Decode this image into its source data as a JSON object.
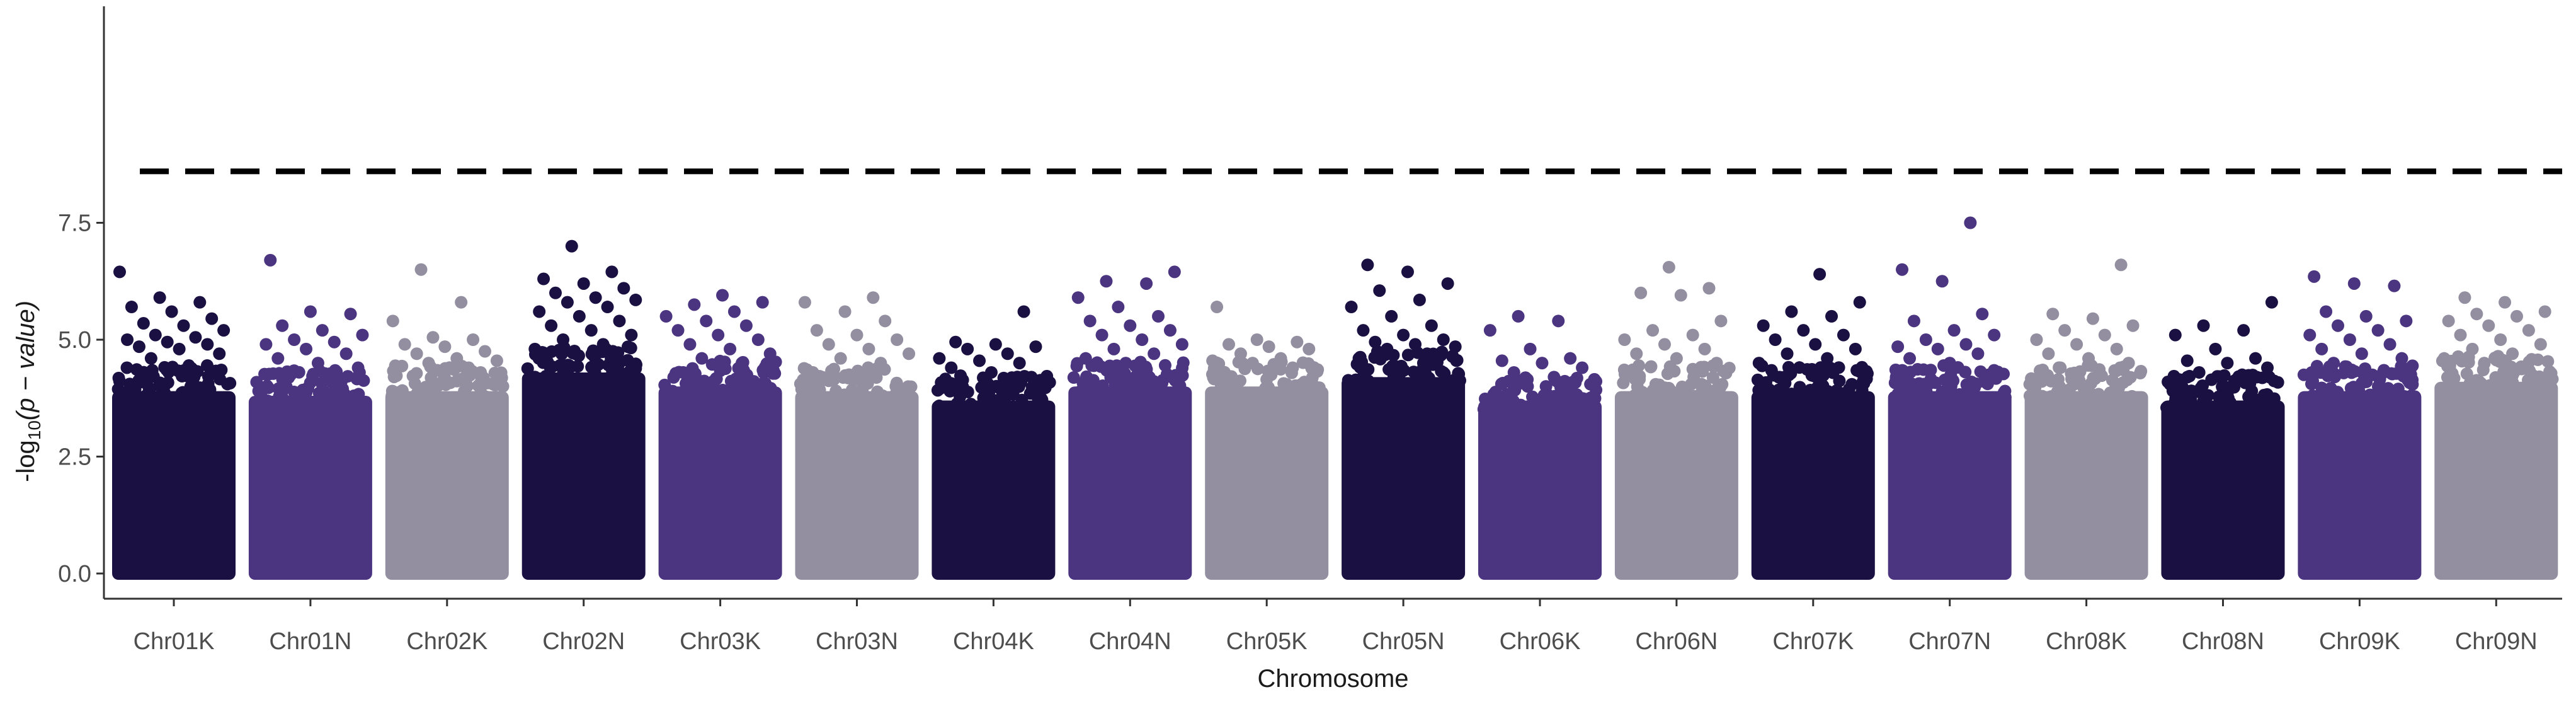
{
  "chart_data": {
    "type": "scatter",
    "subtype": "manhattan",
    "title": "",
    "xlabel": "Chromosome",
    "ylabel": {
      "prefix": "-log",
      "sub": "10",
      "suffix": "(p − value)"
    },
    "ylim": [
      0,
      8.6
    ],
    "yticks": [
      0.0,
      2.5,
      5.0,
      7.5
    ],
    "ytick_labels": [
      "0.0",
      "2.5",
      "5.0",
      "7.5"
    ],
    "threshold": 8.6,
    "threshold_style": "dashed",
    "grid": false,
    "legend": "none",
    "palette": [
      "#1b1042",
      "#4b3480",
      "#938fa0"
    ],
    "categories": [
      "Chr01K",
      "Chr01N",
      "Chr02K",
      "Chr02N",
      "Chr03K",
      "Chr03N",
      "Chr04K",
      "Chr04N",
      "Chr05K",
      "Chr05N",
      "Chr06K",
      "Chr06N",
      "Chr07K",
      "Chr07N",
      "Chr08K",
      "Chr08N",
      "Chr09K",
      "Chr09N"
    ],
    "series": [
      {
        "chromosome": "Chr01K",
        "color": "#1b1042",
        "bulk_top": 3.9,
        "points": [
          6.45,
          5.9,
          5.8,
          5.7,
          5.6,
          5.45,
          5.35,
          5.3,
          5.2,
          5.1,
          5.05,
          5.0,
          4.95,
          4.9,
          4.85,
          4.8,
          4.7,
          4.6
        ]
      },
      {
        "chromosome": "Chr01N",
        "color": "#4b3480",
        "bulk_top": 3.8,
        "points": [
          6.7,
          5.6,
          5.55,
          5.3,
          5.2,
          5.1,
          5.0,
          4.95,
          4.9,
          4.8,
          4.7,
          4.6,
          4.5,
          4.4
        ]
      },
      {
        "chromosome": "Chr02K",
        "color": "#938fa0",
        "bulk_top": 3.9,
        "points": [
          6.5,
          5.8,
          5.4,
          5.05,
          5.0,
          4.9,
          4.85,
          4.75,
          4.7,
          4.6,
          4.55,
          4.5,
          4.4
        ]
      },
      {
        "chromosome": "Chr02N",
        "color": "#1b1042",
        "bulk_top": 4.3,
        "points": [
          7.0,
          6.45,
          6.3,
          6.2,
          6.1,
          6.0,
          5.9,
          5.85,
          5.8,
          5.7,
          5.6,
          5.5,
          5.4,
          5.3,
          5.2,
          5.1,
          5.0,
          4.9,
          4.8,
          4.7
        ]
      },
      {
        "chromosome": "Chr03K",
        "color": "#4b3480",
        "bulk_top": 4.0,
        "points": [
          5.95,
          5.8,
          5.75,
          5.6,
          5.5,
          5.4,
          5.3,
          5.2,
          5.1,
          5.0,
          4.9,
          4.8,
          4.7,
          4.6,
          4.5
        ]
      },
      {
        "chromosome": "Chr03N",
        "color": "#938fa0",
        "bulk_top": 3.9,
        "points": [
          5.9,
          5.8,
          5.6,
          5.4,
          5.2,
          5.1,
          5.0,
          4.9,
          4.8,
          4.7,
          4.6,
          4.5
        ]
      },
      {
        "chromosome": "Chr04K",
        "color": "#1b1042",
        "bulk_top": 3.7,
        "points": [
          5.6,
          4.95,
          4.9,
          4.85,
          4.8,
          4.7,
          4.6,
          4.55,
          4.5,
          4.4,
          4.3,
          4.2
        ]
      },
      {
        "chromosome": "Chr04N",
        "color": "#4b3480",
        "bulk_top": 4.0,
        "points": [
          6.45,
          6.25,
          6.2,
          5.9,
          5.7,
          5.5,
          5.4,
          5.3,
          5.2,
          5.1,
          5.0,
          4.9,
          4.8,
          4.7,
          4.6,
          4.5
        ]
      },
      {
        "chromosome": "Chr05K",
        "color": "#938fa0",
        "bulk_top": 4.0,
        "points": [
          5.7,
          5.0,
          4.95,
          4.9,
          4.85,
          4.8,
          4.7,
          4.6,
          4.55,
          4.5,
          4.4
        ]
      },
      {
        "chromosome": "Chr05N",
        "color": "#1b1042",
        "bulk_top": 4.2,
        "points": [
          6.6,
          6.45,
          6.2,
          6.05,
          5.85,
          5.7,
          5.5,
          5.3,
          5.2,
          5.1,
          5.0,
          4.95,
          4.9,
          4.85,
          4.8,
          4.7,
          4.6
        ]
      },
      {
        "chromosome": "Chr06K",
        "color": "#4b3480",
        "bulk_top": 3.7,
        "points": [
          5.5,
          5.4,
          5.2,
          4.8,
          4.6,
          4.55,
          4.5,
          4.4,
          4.3,
          4.2
        ]
      },
      {
        "chromosome": "Chr06N",
        "color": "#938fa0",
        "bulk_top": 3.9,
        "points": [
          6.55,
          6.1,
          6.0,
          5.95,
          5.4,
          5.2,
          5.1,
          5.0,
          4.9,
          4.8,
          4.7,
          4.6,
          4.5
        ]
      },
      {
        "chromosome": "Chr07K",
        "color": "#1b1042",
        "bulk_top": 3.9,
        "points": [
          6.4,
          5.8,
          5.6,
          5.5,
          5.3,
          5.2,
          5.1,
          5.0,
          4.9,
          4.8,
          4.7,
          4.6,
          4.5
        ]
      },
      {
        "chromosome": "Chr07N",
        "color": "#4b3480",
        "bulk_top": 3.9,
        "points": [
          7.5,
          6.5,
          6.25,
          5.55,
          5.4,
          5.2,
          5.1,
          5.0,
          4.9,
          4.85,
          4.8,
          4.7,
          4.6,
          4.5
        ]
      },
      {
        "chromosome": "Chr08K",
        "color": "#938fa0",
        "bulk_top": 3.9,
        "points": [
          6.6,
          5.55,
          5.45,
          5.3,
          5.2,
          5.1,
          5.0,
          4.9,
          4.8,
          4.7,
          4.6,
          4.5,
          4.4
        ]
      },
      {
        "chromosome": "Chr08N",
        "color": "#1b1042",
        "bulk_top": 3.7,
        "points": [
          5.8,
          5.3,
          5.2,
          5.1,
          4.8,
          4.6,
          4.55,
          4.5,
          4.4,
          4.3,
          4.2
        ]
      },
      {
        "chromosome": "Chr09K",
        "color": "#4b3480",
        "bulk_top": 3.9,
        "points": [
          6.35,
          6.2,
          6.15,
          5.6,
          5.5,
          5.4,
          5.3,
          5.2,
          5.1,
          5.0,
          4.9,
          4.8,
          4.7,
          4.6,
          4.5
        ]
      },
      {
        "chromosome": "Chr09N",
        "color": "#938fa0",
        "bulk_top": 4.1,
        "points": [
          5.9,
          5.8,
          5.6,
          5.55,
          5.5,
          5.4,
          5.3,
          5.2,
          5.1,
          5.0,
          4.9,
          4.8,
          4.7,
          4.6,
          4.5
        ]
      }
    ]
  }
}
